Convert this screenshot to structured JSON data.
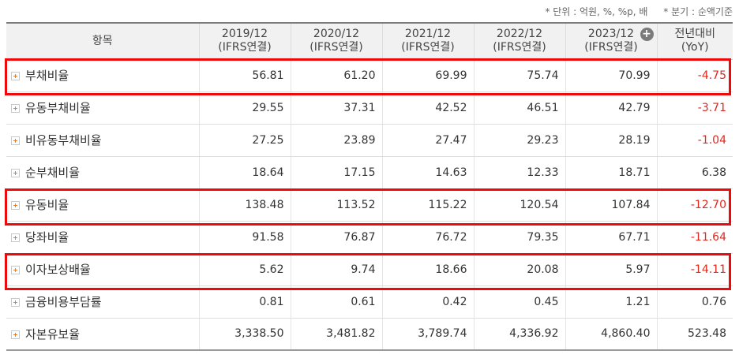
{
  "unit_note": {
    "unit": "* 단위 : 억원, %, %p, 배",
    "quarter": "* 분기 : 순액기준"
  },
  "header": {
    "item": "항목",
    "periods": [
      {
        "year": "2019/12",
        "basis": "(IFRS연결)"
      },
      {
        "year": "2020/12",
        "basis": "(IFRS연결)"
      },
      {
        "year": "2021/12",
        "basis": "(IFRS연결)"
      },
      {
        "year": "2022/12",
        "basis": "(IFRS연결)"
      },
      {
        "year": "2023/12",
        "basis": "(IFRS연결)"
      }
    ],
    "yoy": "전년대비",
    "yoy_sub": "(YoY)"
  },
  "rows": [
    {
      "name": "부채비율",
      "values": [
        "56.81",
        "61.20",
        "69.99",
        "75.74",
        "70.99"
      ],
      "yoy": "-4.75"
    },
    {
      "name": "유동부채비율",
      "values": [
        "29.55",
        "37.31",
        "42.52",
        "46.51",
        "42.79"
      ],
      "yoy": "-3.71"
    },
    {
      "name": "비유동부채비율",
      "values": [
        "27.25",
        "23.89",
        "27.47",
        "29.23",
        "28.19"
      ],
      "yoy": "-1.04"
    },
    {
      "name": "순부채비율",
      "values": [
        "18.64",
        "17.15",
        "14.63",
        "12.33",
        "18.71"
      ],
      "yoy": "6.38"
    },
    {
      "name": "유동비율",
      "values": [
        "138.48",
        "113.52",
        "115.22",
        "120.54",
        "107.84"
      ],
      "yoy": "-12.70"
    },
    {
      "name": "당좌비율",
      "values": [
        "91.58",
        "76.87",
        "76.72",
        "79.35",
        "67.71"
      ],
      "yoy": "-11.64"
    },
    {
      "name": "이자보상배율",
      "values": [
        "5.62",
        "9.74",
        "18.66",
        "20.08",
        "5.97"
      ],
      "yoy": "-14.11"
    },
    {
      "name": "금융비용부담률",
      "values": [
        "0.81",
        "0.61",
        "0.42",
        "0.45",
        "1.21"
      ],
      "yoy": "0.76"
    },
    {
      "name": "자본유보율",
      "values": [
        "3,338.50",
        "3,481.82",
        "3,789.74",
        "4,336.92",
        "4,860.40"
      ],
      "yoy": "523.48"
    }
  ],
  "highlight_color": "#ee0a0a",
  "negative_color": "#e1261c",
  "icons": {
    "expand": "plus-square-icon",
    "add_column": "plus-circle-icon"
  }
}
